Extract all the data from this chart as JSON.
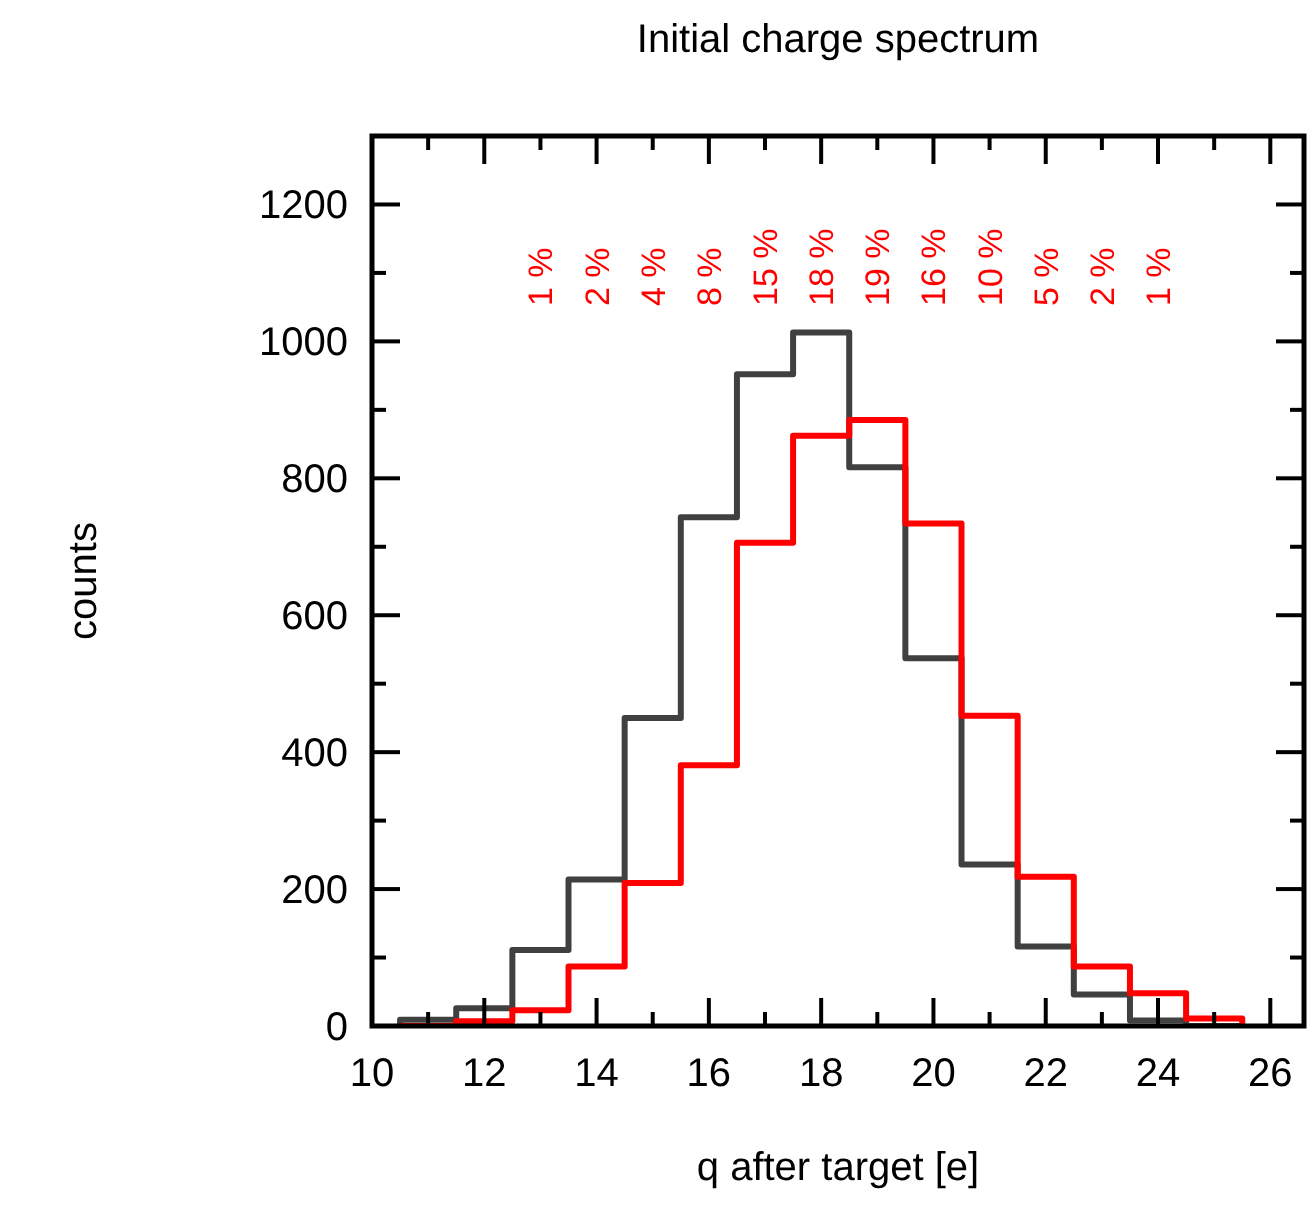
{
  "chart_data": {
    "type": "histogram",
    "title": "Initial charge spectrum",
    "xlabel": "q after target [e]",
    "ylabel": "counts",
    "bins": [
      10.5,
      11.5,
      12.5,
      13.5,
      14.5,
      15.5,
      16.5,
      17.5,
      18.5,
      19.5,
      20.5,
      21.5,
      22.5,
      23.5,
      24.5,
      25.5
    ],
    "series": [
      {
        "color": "#404040",
        "values": [
          9,
          26,
          111,
          214,
          450,
          743,
          952,
          1013,
          816,
          537,
          236,
          116,
          46,
          8,
          0
        ]
      },
      {
        "color": "#ff0000",
        "values": [
          0,
          7,
          23,
          87,
          209,
          381,
          706,
          862,
          885,
          734,
          453,
          218,
          87,
          48,
          11
        ]
      }
    ],
    "xlim": [
      10,
      26.6
    ],
    "ylim": [
      0,
      1300
    ],
    "xticks": [
      10,
      12,
      14,
      16,
      18,
      20,
      22,
      24,
      26
    ],
    "yticks": [
      0,
      200,
      400,
      600,
      800,
      1000,
      1200
    ],
    "grid": false,
    "annotations": [
      "1 %",
      "2 %",
      "4 %",
      "8 %",
      "15 %",
      "18 %",
      "19 %",
      "16 %",
      "10 %",
      "5 %",
      "2 %",
      "1 %"
    ]
  }
}
